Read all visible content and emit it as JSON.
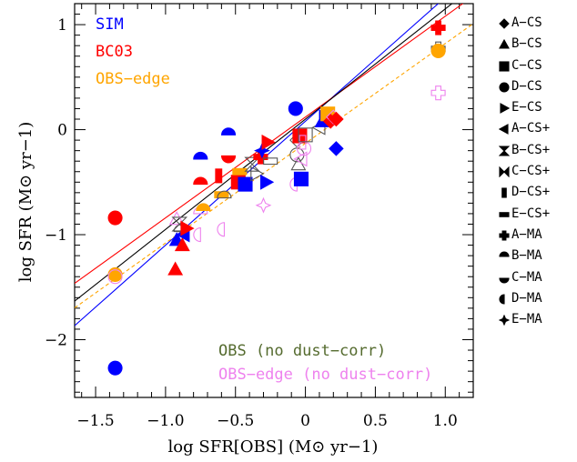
{
  "chart_data": {
    "type": "scatter",
    "xlabel": "log SFR[OBS] (M⊙ yr−1)",
    "ylabel": "log SFR (M⊙ yr−1)",
    "xlim": [
      -1.65,
      1.2
    ],
    "ylim": [
      -2.55,
      1.2
    ],
    "xticks": [
      -1.5,
      -1.0,
      -0.5,
      0.0,
      0.5,
      1.0
    ],
    "xtick_labels": [
      "−1.5",
      "−1.0",
      "−0.5",
      "0",
      "0.5",
      "1.0"
    ],
    "yticks": [
      -2,
      -1,
      0,
      1
    ],
    "ytick_labels": [
      "−2",
      "−1",
      "0",
      "1"
    ],
    "color_labels": [
      {
        "text": "SIM",
        "color": "#0000ff"
      },
      {
        "text": "BC03",
        "color": "#ff0000"
      },
      {
        "text": "OBS−edge",
        "color": "#ffa500"
      }
    ],
    "bottom_labels": [
      {
        "text": "OBS (no dust−corr)",
        "color": "#556b2f"
      },
      {
        "text": "OBS−edge (no dust−corr)",
        "color": "#ee82ee"
      }
    ],
    "legend": [
      {
        "marker": "diamond",
        "label": "A−CS"
      },
      {
        "marker": "triangle",
        "label": "B−CS"
      },
      {
        "marker": "square",
        "label": "C−CS"
      },
      {
        "marker": "circle",
        "label": "D−CS"
      },
      {
        "marker": "tri-right",
        "label": "E−CS"
      },
      {
        "marker": "tri-left",
        "label": "A−CS+"
      },
      {
        "marker": "hourglass",
        "label": "B−CS+"
      },
      {
        "marker": "bowtie",
        "label": "C−CS+"
      },
      {
        "marker": "vbar",
        "label": "D−CS+"
      },
      {
        "marker": "hbar",
        "label": "E−CS+"
      },
      {
        "marker": "cross",
        "label": "A−MA"
      },
      {
        "marker": "half-top",
        "label": "B−MA"
      },
      {
        "marker": "half-bottom",
        "label": "C−MA"
      },
      {
        "marker": "half-left",
        "label": "D−MA"
      },
      {
        "marker": "star4",
        "label": "E−MA"
      }
    ],
    "lines": [
      {
        "name": "SIM",
        "color": "#0000ff",
        "dash": false,
        "slope": 1.18,
        "intercept": 0.08
      },
      {
        "name": "BC03",
        "color": "#ff0000",
        "dash": false,
        "slope": 0.96,
        "intercept": 0.12
      },
      {
        "name": "OBS−edge",
        "color": "#ffa500",
        "dash": true,
        "slope": 0.95,
        "intercept": -0.13
      },
      {
        "name": "OBS",
        "color": "#000000",
        "dash": false,
        "slope": 1.05,
        "intercept": 0.1
      }
    ],
    "points": [
      {
        "x": 0.95,
        "y": 0.97,
        "m": "cross",
        "c": "#ff0000",
        "f": true
      },
      {
        "x": 0.95,
        "y": 0.77,
        "m": "cross",
        "c": "#555555",
        "f": false
      },
      {
        "x": 0.95,
        "y": 0.75,
        "m": "circle",
        "c": "#ffa500",
        "f": true
      },
      {
        "x": 0.95,
        "y": 0.35,
        "m": "cross",
        "c": "#ee82ee",
        "f": false
      },
      {
        "x": -1.36,
        "y": -0.84,
        "m": "circle",
        "c": "#ff0000",
        "f": true
      },
      {
        "x": -1.36,
        "y": -1.38,
        "m": "circle",
        "c": "#ffa500",
        "f": true
      },
      {
        "x": -1.36,
        "y": -1.4,
        "m": "circle",
        "c": "#ee82ee",
        "f": false
      },
      {
        "x": -1.36,
        "y": -2.27,
        "m": "circle",
        "c": "#0000ff",
        "f": true
      },
      {
        "x": -0.93,
        "y": -1.33,
        "m": "triangle",
        "c": "#ff0000",
        "f": true
      },
      {
        "x": -0.92,
        "y": -0.85,
        "m": "triangle",
        "c": "#ee82ee",
        "f": false
      },
      {
        "x": -0.92,
        "y": -1.05,
        "m": "triangle",
        "c": "#0000ff",
        "f": true
      },
      {
        "x": -0.9,
        "y": -0.9,
        "m": "hourglass",
        "c": "#555555",
        "f": false
      },
      {
        "x": -0.88,
        "y": -1.1,
        "m": "triangle",
        "c": "#ff0000",
        "f": true
      },
      {
        "x": -0.87,
        "y": -1.0,
        "m": "tri-left",
        "c": "#0000ff",
        "f": true
      },
      {
        "x": -0.89,
        "y": -0.97,
        "m": "half-top",
        "c": "#555555",
        "f": false
      },
      {
        "x": -0.85,
        "y": -0.94,
        "m": "tri-right",
        "c": "#ff0000",
        "f": true
      },
      {
        "x": -0.75,
        "y": -0.28,
        "m": "half-top",
        "c": "#0000ff",
        "f": true
      },
      {
        "x": -0.75,
        "y": -0.52,
        "m": "half-top",
        "c": "#ff0000",
        "f": true
      },
      {
        "x": -0.75,
        "y": -0.8,
        "m": "half-top",
        "c": "#ee82ee",
        "f": false
      },
      {
        "x": -0.75,
        "y": -1.0,
        "m": "half-left",
        "c": "#ee82ee",
        "f": false
      },
      {
        "x": -0.73,
        "y": -0.77,
        "m": "half-top",
        "c": "#ffa500",
        "f": true
      },
      {
        "x": -0.62,
        "y": -0.44,
        "m": "vbar",
        "c": "#ff0000",
        "f": true
      },
      {
        "x": -0.6,
        "y": -0.62,
        "m": "hbar",
        "c": "#ffa500",
        "f": true
      },
      {
        "x": -0.58,
        "y": -0.65,
        "m": "half-top",
        "c": "#555555",
        "f": false
      },
      {
        "x": -0.58,
        "y": -0.95,
        "m": "half-left",
        "c": "#ee82ee",
        "f": false
      },
      {
        "x": -0.55,
        "y": -0.05,
        "m": "half-top",
        "c": "#0000ff",
        "f": true
      },
      {
        "x": -0.55,
        "y": -0.25,
        "m": "half-bottom",
        "c": "#ff0000",
        "f": true
      },
      {
        "x": -0.48,
        "y": -0.5,
        "m": "square",
        "c": "#ff0000",
        "f": true
      },
      {
        "x": -0.47,
        "y": -0.4,
        "m": "hbar",
        "c": "#ffa500",
        "f": true
      },
      {
        "x": -0.43,
        "y": -0.52,
        "m": "square",
        "c": "#0000ff",
        "f": true
      },
      {
        "x": -0.38,
        "y": -0.33,
        "m": "hourglass",
        "c": "#555555",
        "f": false
      },
      {
        "x": -0.35,
        "y": -0.42,
        "m": "tri-right",
        "c": "#555555",
        "f": false
      },
      {
        "x": -0.32,
        "y": -0.26,
        "m": "cross",
        "c": "#ff0000",
        "f": true
      },
      {
        "x": -0.31,
        "y": -0.2,
        "m": "star4",
        "c": "#0000ff",
        "f": true
      },
      {
        "x": -0.3,
        "y": -0.72,
        "m": "star4",
        "c": "#ee82ee",
        "f": false
      },
      {
        "x": -0.28,
        "y": -0.5,
        "m": "tri-right",
        "c": "#0000ff",
        "f": true
      },
      {
        "x": -0.27,
        "y": -0.12,
        "m": "tri-right",
        "c": "#ff0000",
        "f": true
      },
      {
        "x": -0.25,
        "y": -0.3,
        "m": "hbar",
        "c": "#555555",
        "f": false
      },
      {
        "x": -0.07,
        "y": 0.2,
        "m": "circle",
        "c": "#0000ff",
        "f": true
      },
      {
        "x": -0.06,
        "y": -0.1,
        "m": "diamond",
        "c": "#555555",
        "f": false
      },
      {
        "x": -0.06,
        "y": -0.24,
        "m": "circle",
        "c": "#555555",
        "f": false
      },
      {
        "x": -0.06,
        "y": -0.52,
        "m": "half-left",
        "c": "#ee82ee",
        "f": false
      },
      {
        "x": -0.05,
        "y": -0.33,
        "m": "triangle",
        "c": "#555555",
        "f": false
      },
      {
        "x": -0.04,
        "y": -0.06,
        "m": "square",
        "c": "#ff0000",
        "f": true
      },
      {
        "x": -0.03,
        "y": -0.47,
        "m": "square",
        "c": "#0000ff",
        "f": true
      },
      {
        "x": -0.03,
        "y": -0.28,
        "m": "tri-left",
        "c": "#ee82ee",
        "f": false
      },
      {
        "x": -0.02,
        "y": -0.12,
        "m": "vbar",
        "c": "#ee82ee",
        "f": false
      },
      {
        "x": -0.01,
        "y": -0.18,
        "m": "circle",
        "c": "#ee82ee",
        "f": false
      },
      {
        "x": 0.0,
        "y": -0.05,
        "m": "square",
        "c": "#555555",
        "f": false
      },
      {
        "x": 0.1,
        "y": 0.02,
        "m": "tri-left",
        "c": "#555555",
        "f": false
      },
      {
        "x": 0.12,
        "y": 0.08,
        "m": "triangle",
        "c": "#0000ff",
        "f": true
      },
      {
        "x": 0.14,
        "y": 0.12,
        "m": "tri-right",
        "c": "#0000ff",
        "f": true
      },
      {
        "x": 0.16,
        "y": 0.15,
        "m": "square",
        "c": "#ffa500",
        "f": true
      },
      {
        "x": 0.18,
        "y": 0.08,
        "m": "diamond",
        "c": "#ff0000",
        "f": true
      },
      {
        "x": 0.2,
        "y": 0.12,
        "m": "diamond",
        "c": "#ee82ee",
        "f": false
      },
      {
        "x": 0.22,
        "y": -0.18,
        "m": "diamond",
        "c": "#0000ff",
        "f": true
      },
      {
        "x": 0.22,
        "y": 0.1,
        "m": "diamond",
        "c": "#ff0000",
        "f": true
      }
    ]
  }
}
